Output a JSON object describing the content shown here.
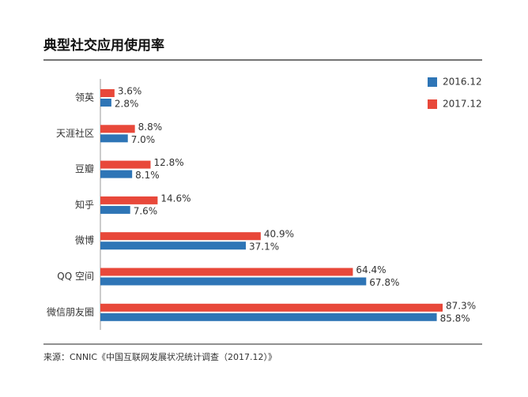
{
  "chart_data": {
    "type": "hbar",
    "title": "典型社交应用使用率",
    "categories": [
      "领英",
      "天涯社区",
      "豆瓣",
      "知乎",
      "微博",
      "QQ 空间",
      "微信朋友圈"
    ],
    "series": [
      {
        "name": "2016.12",
        "color": "#2e75b6",
        "values": [
          2.8,
          7.0,
          8.1,
          7.6,
          37.1,
          67.8,
          85.8
        ],
        "value_labels": [
          "2.8%",
          "7.0%",
          "8.1%",
          "7.6%",
          "37.1%",
          "67.8%",
          "85.8%"
        ]
      },
      {
        "name": "2017.12",
        "color": "#e8483a",
        "values": [
          3.6,
          8.8,
          12.8,
          14.6,
          40.9,
          64.4,
          87.3
        ],
        "value_labels": [
          "3.6%",
          "8.8%",
          "12.8%",
          "14.6%",
          "40.9%",
          "64.4%",
          "87.3%"
        ]
      }
    ],
    "legend": "top-right",
    "source": "来源：CNNIC《中国互联网发展状况统计调查（2017.12）》"
  }
}
